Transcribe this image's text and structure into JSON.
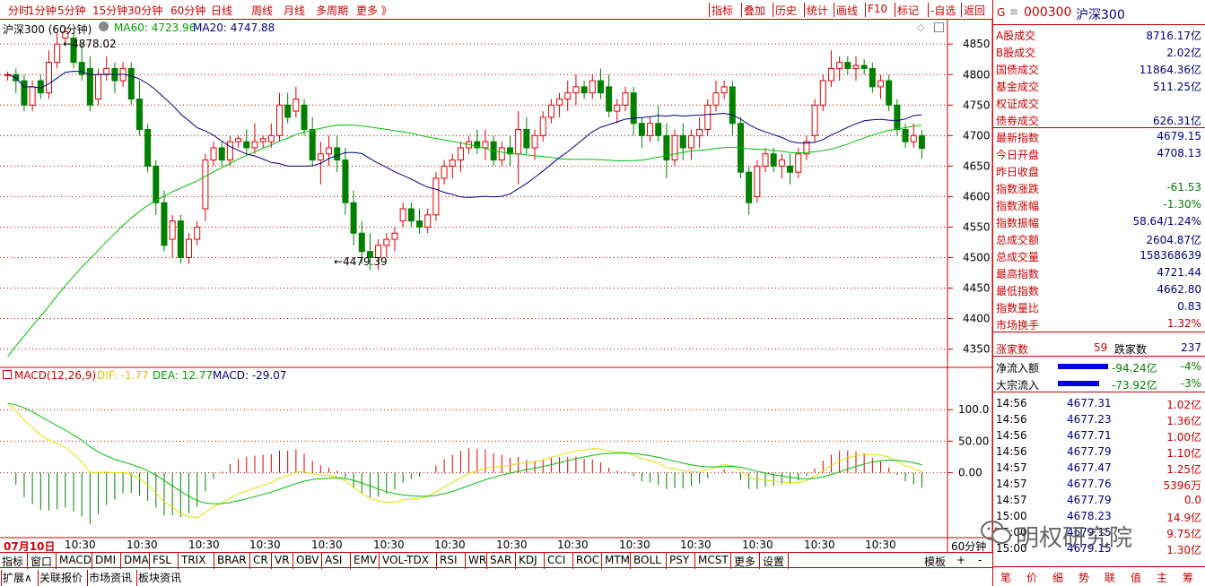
{
  "toolbar": {
    "periods": [
      "分时",
      "1分钟",
      "5分钟",
      "15分钟",
      "30分钟",
      "60分钟",
      "日线",
      "周线",
      "月线",
      "多周期",
      "更多 》"
    ],
    "right_buttons": [
      "指标",
      "叠加",
      "历史",
      "统计",
      "画线",
      "F10",
      "标记",
      "-自选",
      "返回"
    ]
  },
  "chart_header": {
    "title": "沪深300 (60分钟)",
    "ma60_label": "MA60: 4723.96",
    "ma20_label": "MA20: 4747.88",
    "high_marker": "4878.02",
    "low_marker": "4479.39"
  },
  "macd_header": {
    "title": "MACD(12,26,9)",
    "dif": "DIF: -1.77",
    "dea": "DEA: 12.77",
    "macd": "MACD: -29.07"
  },
  "price_axis": [
    "4850",
    "4800",
    "4750",
    "4700",
    "4650",
    "4600",
    "4550",
    "4500",
    "4450",
    "4400",
    "4350"
  ],
  "macd_axis": [
    "100.0",
    "50.00",
    "0.00"
  ],
  "time_axis": [
    "07月10日",
    "10:30",
    "10:30",
    "10:30",
    "10:30",
    "10:30",
    "10:30",
    "10:30",
    "10:30",
    "10:30",
    "10:30",
    "10:30",
    "10:30",
    "10:30",
    "10:30",
    "10:30"
  ],
  "period_label": "60分钟",
  "indicator_tabs": [
    "指标",
    "窗口",
    "MACD",
    "DMI",
    "DMA",
    "FSL",
    "TRIX",
    "BRAR",
    "CR",
    "VR",
    "OBV",
    "ASI",
    "EMV",
    "VOL-TDX",
    "RSI",
    "WR",
    "SAR",
    "KDJ",
    "CCI",
    "ROC",
    "MTM",
    "BOLL",
    "PSY",
    "MCST",
    "更多",
    "设置"
  ],
  "template_label": "模板",
  "bottom_tabs": [
    "扩展∧",
    "关联报价",
    "市场资讯",
    "板块资讯"
  ],
  "right_panel": {
    "code": "000300",
    "name": "沪深300",
    "prefix": "G",
    "rows": [
      {
        "label": "A股成交",
        "value": "8716.17亿"
      },
      {
        "label": "B股成交",
        "value": "2.02亿"
      },
      {
        "label": "国债成交",
        "value": "11864.36亿"
      },
      {
        "label": "基金成交",
        "value": "511.25亿"
      },
      {
        "label": "权证成交",
        "value": ""
      },
      {
        "label": "债券成交",
        "value": "626.31亿"
      },
      {
        "label": "最新指数",
        "value": "4679.15"
      },
      {
        "label": "今日开盘",
        "value": "4708.13"
      },
      {
        "label": "昨日收盘",
        "value": ""
      },
      {
        "label": "指数涨跌",
        "value": "-61.53"
      },
      {
        "label": "指数涨幅",
        "value": "-1.30%"
      },
      {
        "label": "指数振幅",
        "value": "58.64/1.24%"
      },
      {
        "label": "总成交额",
        "value": "2604.87亿"
      },
      {
        "label": "总成交量",
        "value": "158368639"
      },
      {
        "label": "最高指数",
        "value": "4721.44"
      },
      {
        "label": "最低指数",
        "value": "4662.80"
      },
      {
        "label": "指数量比",
        "value": "0.83"
      },
      {
        "label": "市场换手",
        "value": "1.32%"
      }
    ],
    "rise_label": "涨家数",
    "rise_count": "59",
    "fall_label": "跌家数",
    "fall_count": "237",
    "flows": [
      {
        "label": "净流入额",
        "value": "-94.24亿",
        "pct": "-4%"
      },
      {
        "label": "大宗流入",
        "value": "-73.92亿",
        "pct": "-3%"
      }
    ],
    "ticks": [
      {
        "time": "14:56",
        "price": "4677.31",
        "vol": "1.02亿"
      },
      {
        "time": "14:56",
        "price": "4677.23",
        "vol": "1.36亿"
      },
      {
        "time": "14:56",
        "price": "4677.71",
        "vol": "1.00亿"
      },
      {
        "time": "14:56",
        "price": "4677.79",
        "vol": "1.10亿"
      },
      {
        "time": "14:57",
        "price": "4677.47",
        "vol": "1.25亿"
      },
      {
        "time": "14:57",
        "price": "4677.76",
        "vol": "5396万"
      },
      {
        "time": "14:57",
        "price": "4677.79",
        "vol": "0.0"
      },
      {
        "time": "15:00",
        "price": "4678.23",
        "vol": "14.9亿"
      },
      {
        "time": "15:00",
        "price": "4679.15",
        "vol": "9.75亿"
      },
      {
        "time": "15:00",
        "price": "4679.15",
        "vol": "1.30亿"
      }
    ],
    "bottom_buttons": [
      "笔",
      "价",
      "细",
      "势",
      "联",
      "值",
      "主",
      "筹"
    ]
  },
  "watermark": "明权研究院",
  "colors": {
    "up": "#e00000",
    "down": "#008000",
    "ma60": "#00c000",
    "ma20": "#000080",
    "dif": "#e0e000",
    "dea": "#00c000",
    "accent": "#c00000"
  },
  "chart_data": {
    "type": "candlestick",
    "price_range": [
      4320,
      4890
    ],
    "candles": [
      [
        4800,
        4805,
        4790,
        4800
      ],
      [
        4800,
        4810,
        4770,
        4790
      ],
      [
        4790,
        4800,
        4740,
        4750
      ],
      [
        4750,
        4790,
        4740,
        4780
      ],
      [
        4790,
        4800,
        4760,
        4770
      ],
      [
        4770,
        4840,
        4760,
        4820
      ],
      [
        4820,
        4870,
        4810,
        4850
      ],
      [
        4860,
        4878,
        4850,
        4870
      ],
      [
        4860,
        4870,
        4810,
        4820
      ],
      [
        4820,
        4850,
        4790,
        4800
      ],
      [
        4810,
        4830,
        4740,
        4750
      ],
      [
        4760,
        4810,
        4750,
        4800
      ],
      [
        4800,
        4830,
        4790,
        4810
      ],
      [
        4810,
        4820,
        4770,
        4790
      ],
      [
        4790,
        4820,
        4780,
        4810
      ],
      [
        4810,
        4820,
        4750,
        4760
      ],
      [
        4760,
        4790,
        4700,
        4710
      ],
      [
        4710,
        4720,
        4640,
        4650
      ],
      [
        4650,
        4660,
        4570,
        4590
      ],
      [
        4590,
        4610,
        4510,
        4520
      ],
      [
        4530,
        4570,
        4500,
        4560
      ],
      [
        4560,
        4570,
        4490,
        4500
      ],
      [
        4500,
        4540,
        4490,
        4530
      ],
      [
        4530,
        4560,
        4520,
        4550
      ],
      [
        4580,
        4670,
        4560,
        4660
      ],
      [
        4660,
        4690,
        4650,
        4680
      ],
      [
        4680,
        4690,
        4650,
        4660
      ],
      [
        4660,
        4700,
        4650,
        4690
      ],
      [
        4690,
        4700,
        4680,
        4695
      ],
      [
        4690,
        4710,
        4670,
        4680
      ],
      [
        4680,
        4720,
        4670,
        4690
      ],
      [
        4690,
        4700,
        4680,
        4695
      ],
      [
        4690,
        4720,
        4680,
        4700
      ],
      [
        4700,
        4770,
        4690,
        4750
      ],
      [
        4750,
        4770,
        4720,
        4730
      ],
      [
        4740,
        4780,
        4730,
        4760
      ],
      [
        4750,
        4760,
        4700,
        4710
      ],
      [
        4710,
        4730,
        4650,
        4660
      ],
      [
        4660,
        4690,
        4620,
        4670
      ],
      [
        4670,
        4700,
        4650,
        4680
      ],
      [
        4680,
        4700,
        4640,
        4660
      ],
      [
        4660,
        4680,
        4570,
        4590
      ],
      [
        4590,
        4610,
        4520,
        4540
      ],
      [
        4540,
        4560,
        4490,
        4510
      ],
      [
        4510,
        4540,
        4480,
        4500
      ],
      [
        4500,
        4530,
        4480,
        4520
      ],
      [
        4520,
        4540,
        4500,
        4530
      ],
      [
        4530,
        4550,
        4510,
        4540
      ],
      [
        4560,
        4590,
        4550,
        4580
      ],
      [
        4580,
        4590,
        4550,
        4560
      ],
      [
        4560,
        4580,
        4540,
        4550
      ],
      [
        4550,
        4580,
        4540,
        4570
      ],
      [
        4570,
        4640,
        4560,
        4630
      ],
      [
        4630,
        4660,
        4620,
        4650
      ],
      [
        4650,
        4670,
        4630,
        4660
      ],
      [
        4660,
        4690,
        4640,
        4680
      ],
      [
        4680,
        4700,
        4670,
        4690
      ],
      [
        4690,
        4710,
        4670,
        4680
      ],
      [
        4680,
        4710,
        4660,
        4690
      ],
      [
        4690,
        4700,
        4650,
        4660
      ],
      [
        4660,
        4690,
        4650,
        4680
      ],
      [
        4680,
        4700,
        4650,
        4670
      ],
      [
        4670,
        4740,
        4620,
        4710
      ],
      [
        4710,
        4730,
        4670,
        4680
      ],
      [
        4680,
        4710,
        4660,
        4700
      ],
      [
        4700,
        4740,
        4690,
        4730
      ],
      [
        4730,
        4760,
        4720,
        4750
      ],
      [
        4750,
        4770,
        4730,
        4760
      ],
      [
        4760,
        4790,
        4740,
        4770
      ],
      [
        4770,
        4800,
        4750,
        4780
      ],
      [
        4780,
        4790,
        4760,
        4770
      ],
      [
        4770,
        4800,
        4760,
        4790
      ],
      [
        4790,
        4810,
        4760,
        4770
      ],
      [
        4780,
        4800,
        4730,
        4740
      ],
      [
        4740,
        4760,
        4720,
        4750
      ],
      [
        4750,
        4780,
        4740,
        4770
      ],
      [
        4770,
        4780,
        4700,
        4720
      ],
      [
        4720,
        4730,
        4680,
        4700
      ],
      [
        4700,
        4730,
        4690,
        4720
      ],
      [
        4720,
        4750,
        4690,
        4700
      ],
      [
        4700,
        4720,
        4630,
        4660
      ],
      [
        4660,
        4710,
        4650,
        4700
      ],
      [
        4700,
        4720,
        4660,
        4680
      ],
      [
        4680,
        4710,
        4660,
        4700
      ],
      [
        4700,
        4730,
        4680,
        4710
      ],
      [
        4710,
        4760,
        4700,
        4750
      ],
      [
        4750,
        4790,
        4740,
        4770
      ],
      [
        4770,
        4790,
        4760,
        4780
      ],
      [
        4780,
        4790,
        4700,
        4720
      ],
      [
        4720,
        4730,
        4630,
        4640
      ],
      [
        4640,
        4650,
        4570,
        4590
      ],
      [
        4600,
        4660,
        4590,
        4650
      ],
      [
        4650,
        4680,
        4640,
        4670
      ],
      [
        4670,
        4680,
        4640,
        4650
      ],
      [
        4650,
        4670,
        4630,
        4660
      ],
      [
        4650,
        4670,
        4620,
        4640
      ],
      [
        4640,
        4680,
        4630,
        4670
      ],
      [
        4670,
        4700,
        4660,
        4690
      ],
      [
        4700,
        4760,
        4690,
        4750
      ],
      [
        4750,
        4800,
        4740,
        4790
      ],
      [
        4790,
        4840,
        4780,
        4810
      ],
      [
        4810,
        4830,
        4790,
        4820
      ],
      [
        4820,
        4830,
        4800,
        4810
      ],
      [
        4810,
        4830,
        4790,
        4815
      ],
      [
        4815,
        4825,
        4800,
        4810
      ],
      [
        4810,
        4820,
        4770,
        4780
      ],
      [
        4780,
        4800,
        4760,
        4790
      ],
      [
        4790,
        4800,
        4740,
        4750
      ],
      [
        4750,
        4760,
        4700,
        4710
      ],
      [
        4710,
        4720,
        4680,
        4690
      ],
      [
        4690,
        4720,
        4680,
        4700
      ],
      [
        4700,
        4710,
        4662,
        4679
      ]
    ],
    "macd_range": [
      -100,
      150
    ]
  }
}
